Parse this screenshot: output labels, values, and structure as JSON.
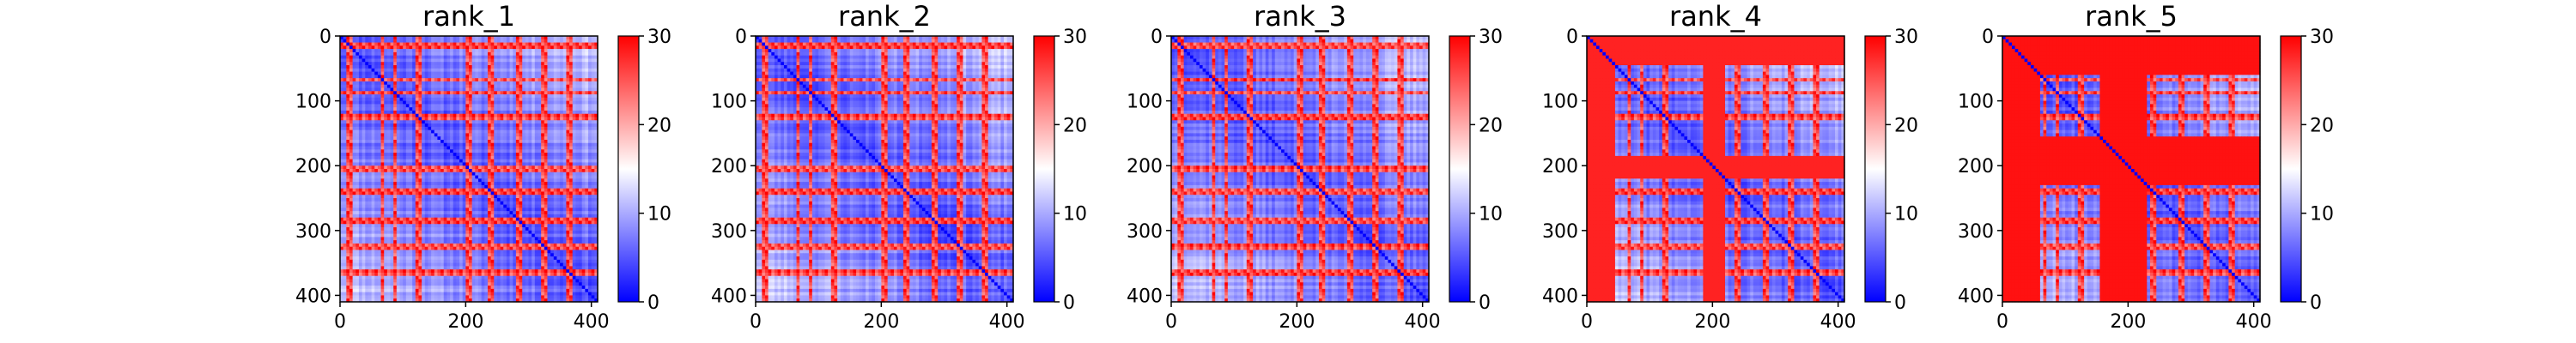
{
  "chart_data": {
    "type": "heatmap",
    "panels": [
      {
        "title": "rank_1",
        "seed": 11,
        "edge_band": 0
      },
      {
        "title": "rank_2",
        "seed": 23,
        "edge_band": 0
      },
      {
        "title": "rank_3",
        "seed": 37,
        "edge_band": 0
      },
      {
        "title": "rank_4",
        "seed": 41,
        "edge_band": 1
      },
      {
        "title": "rank_5",
        "seed": 53,
        "edge_band": 2
      }
    ],
    "x_ticks": [
      "0",
      "200",
      "400"
    ],
    "y_ticks": [
      "0",
      "100",
      "200",
      "300",
      "400"
    ],
    "x_tick_values": [
      0,
      200,
      400
    ],
    "y_tick_values": [
      0,
      100,
      200,
      300,
      400
    ],
    "colorbar_ticks": [
      "0",
      "10",
      "20",
      "30"
    ],
    "colorbar_values": [
      0,
      10,
      20,
      30
    ],
    "xlim": [
      0,
      410
    ],
    "ylim": [
      410,
      0
    ],
    "color_range": [
      0,
      30
    ],
    "colormap": [
      "#0000ff",
      "#ffffff",
      "#ff0000"
    ]
  }
}
